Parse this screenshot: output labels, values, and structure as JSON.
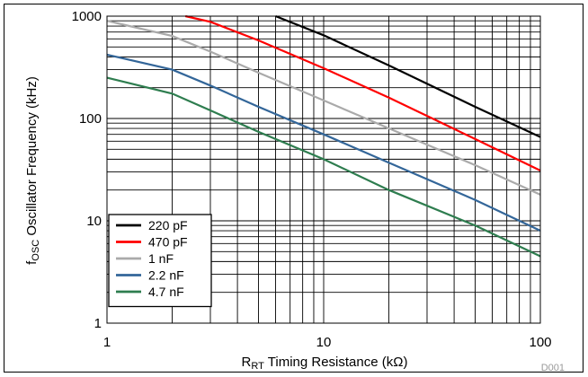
{
  "chart_data": {
    "type": "line",
    "xlabel_main": "R",
    "xlabel_sub": "RT",
    "xlabel_rest": " Timing Resistance (kΩ)",
    "ylabel_main": "f",
    "ylabel_sub": "OSC",
    "ylabel_rest": " Oscillator Frequency (kHz)",
    "x_scale": "log",
    "y_scale": "log",
    "xlim": [
      1,
      100
    ],
    "ylim": [
      1,
      1000
    ],
    "x_ticks": [
      "1",
      "10",
      "100"
    ],
    "y_ticks": [
      "1",
      "10",
      "100",
      "1000"
    ],
    "grid": true,
    "legend_position": "bottom-left",
    "figure_id": "D001",
    "series": [
      {
        "name": "220 pF",
        "color": "#000000",
        "x": [
          6,
          10,
          20,
          50,
          100
        ],
        "y": [
          1000,
          650,
          330,
          130,
          66
        ]
      },
      {
        "name": "470 pF",
        "color": "#ff0000",
        "x": [
          2.3,
          3,
          5,
          10,
          20,
          50,
          100
        ],
        "y": [
          1000,
          880,
          580,
          310,
          160,
          63,
          31
        ]
      },
      {
        "name": "1 nF",
        "color": "#aaaaaa",
        "x": [
          1,
          2,
          3,
          5,
          10,
          20,
          50,
          100
        ],
        "y": [
          900,
          640,
          450,
          280,
          150,
          80,
          35,
          18
        ]
      },
      {
        "name": "2.2 nF",
        "color": "#336699",
        "x": [
          1,
          2,
          3,
          5,
          10,
          20,
          50,
          100
        ],
        "y": [
          420,
          300,
          210,
          130,
          70,
          37,
          16,
          8
        ]
      },
      {
        "name": "4.7 nF",
        "color": "#2e7d4f",
        "x": [
          1,
          2,
          3,
          5,
          10,
          20,
          50,
          100
        ],
        "y": [
          250,
          175,
          120,
          74,
          40,
          20,
          9,
          4.5
        ]
      }
    ]
  }
}
